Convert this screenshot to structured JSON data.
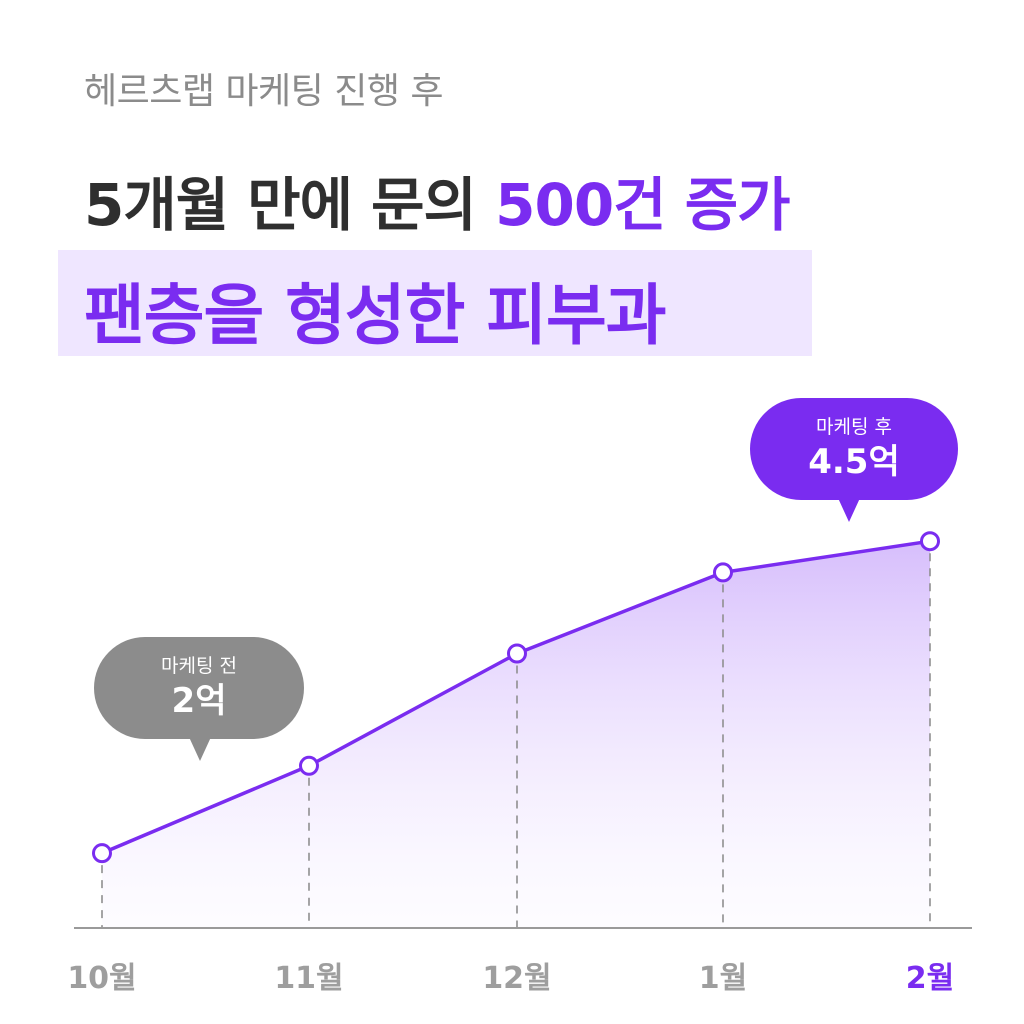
{
  "header": {
    "subtitle": "헤르츠랩 마케팅 진행 후",
    "title_part1": "5개월 만에 문의 ",
    "title_accent": "500건 증가",
    "title_line2": "팬층을 형성한 피부과"
  },
  "callouts": {
    "before": {
      "label": "마케팅 전",
      "value": "2억"
    },
    "after": {
      "label": "마케팅 후",
      "value": "4.5억"
    }
  },
  "colors": {
    "accent": "#7a2cf0",
    "muted": "#8c8c8c",
    "highlight": "#efe6ff",
    "axis": "#9a9a9a"
  },
  "chart_data": {
    "type": "area",
    "categories": [
      "10월",
      "11월",
      "12월",
      "1월",
      "2월"
    ],
    "highlighted_category": "2월",
    "series": [
      {
        "values": [
          2.0,
          2.7,
          3.6,
          4.25,
          4.5
        ]
      }
    ],
    "ylim": [
      1.4,
      4.75
    ],
    "grid": "dashed vertical drop lines",
    "legend": "none"
  }
}
